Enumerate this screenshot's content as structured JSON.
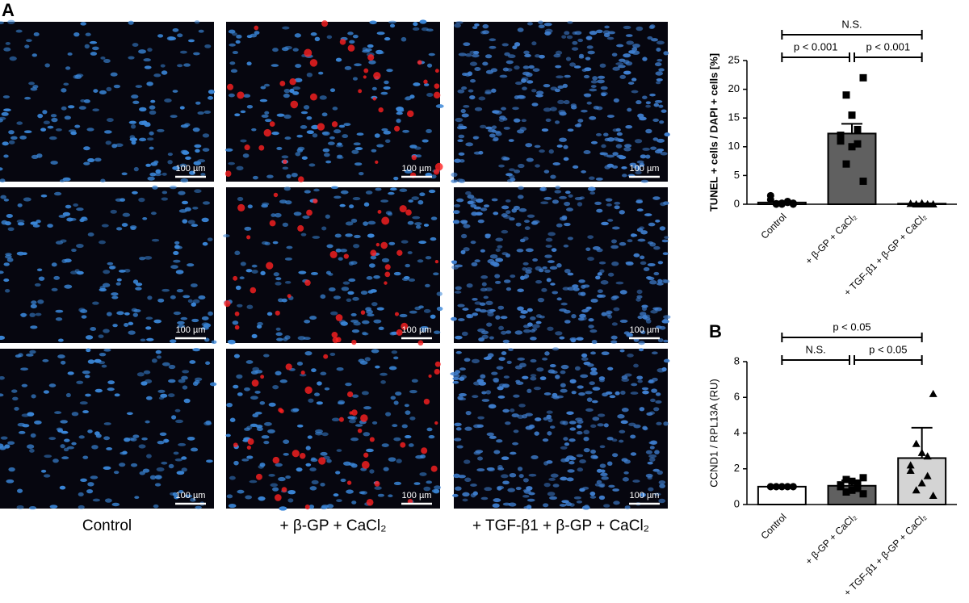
{
  "panel_label_a": "A",
  "panel_label_b": "B",
  "scale_bar_label": "100 µm",
  "micrograph_columns": [
    "Control",
    "+ β-GP + CaCl₂",
    "+ TGF-β1 + β-GP + CaCl₂"
  ],
  "chart_data": [
    {
      "type": "bar",
      "ylabel": "TUNEL + cells / DAPI + cells [%]",
      "categories": [
        "Control",
        "+ β-GP + CaCl₂",
        "+ TGF-β1 + β-GP + CaCl₂"
      ],
      "values": [
        0.3,
        12.3,
        0.1
      ],
      "errors": [
        0.2,
        1.7,
        0.05
      ],
      "colors": [
        "#ffffff",
        "#606060",
        "#d4d4d4"
      ],
      "markers": [
        "circle",
        "square",
        "triangle"
      ],
      "points": [
        [
          0,
          0,
          0.2,
          0.5,
          0.8,
          1.5,
          0.3,
          0,
          0.1,
          0.2
        ],
        [
          22,
          19,
          15.5,
          13,
          12,
          11,
          10.5,
          10,
          7,
          4
        ],
        [
          0,
          0,
          0,
          0,
          0.1,
          0.1,
          0,
          0.2,
          0,
          0
        ]
      ],
      "ylim": [
        0,
        25
      ],
      "yticks": [
        0,
        5,
        10,
        15,
        20,
        25
      ],
      "annotations": [
        "N.S.",
        "p < 0.001",
        "p < 0.001"
      ]
    },
    {
      "type": "bar",
      "ylabel": "CCND1 / RPL13A (RU)",
      "categories": [
        "Control",
        "+ β-GP + CaCl₂",
        "+ TGF-β1 + β-GP + CaCl₂"
      ],
      "values": [
        1.0,
        1.05,
        2.6
      ],
      "errors": [
        0.05,
        0.3,
        1.7
      ],
      "colors": [
        "#ffffff",
        "#606060",
        "#d4d4d4"
      ],
      "markers": [
        "circle",
        "square",
        "triangle"
      ],
      "points": [
        [
          1,
          1,
          1,
          1,
          1,
          1,
          1,
          1,
          1,
          1
        ],
        [
          1.5,
          1.4,
          1.3,
          1.2,
          1.1,
          1.0,
          0.9,
          0.8,
          0.7,
          0.6
        ],
        [
          6.2,
          3.4,
          2.9,
          2.7,
          2.2,
          1.9,
          1.6,
          1.2,
          0.8,
          0.5
        ]
      ],
      "ylim": [
        0,
        8
      ],
      "yticks": [
        0,
        2,
        4,
        6,
        8
      ],
      "annotations": [
        "p < 0.05",
        "N.S.",
        "p < 0.05"
      ]
    }
  ]
}
